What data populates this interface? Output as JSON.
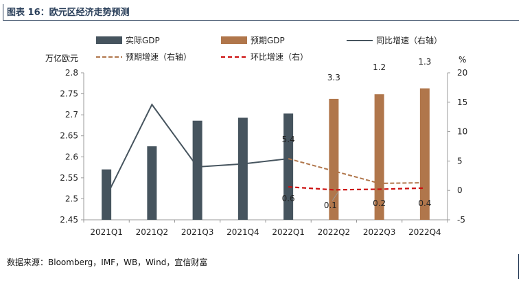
{
  "header": {
    "title": "图表 16：欧元区经济走势预测"
  },
  "footer": {
    "source": "数据来源：Bloomberg，IMF，WB，Wind，宜信财富"
  },
  "chart_data": {
    "type": "bar",
    "categories": [
      "2021Q1",
      "2021Q2",
      "2021Q3",
      "2021Q4",
      "2022Q1",
      "2022Q2",
      "2022Q3",
      "2022Q4"
    ],
    "left_axis": {
      "unit_label": "万亿欧元",
      "min": 2.45,
      "max": 2.8,
      "ticks": [
        "2.45",
        "2.5",
        "2.55",
        "2.6",
        "2.65",
        "2.7",
        "2.75",
        "2.8"
      ]
    },
    "right_axis": {
      "unit_label": "%",
      "min": -5,
      "max": 20,
      "ticks": [
        "-5",
        "0",
        "5",
        "10",
        "15",
        "20"
      ]
    },
    "legend": [
      "实际GDP",
      "预期GDP",
      "同比增速（右轴）",
      "预期增速（右轴）",
      "环比增速（右）"
    ],
    "series": [
      {
        "name": "实际GDP",
        "kind": "bar",
        "axis": "left",
        "color": "#46545e",
        "values": [
          2.57,
          2.625,
          2.686,
          2.693,
          2.703,
          null,
          null,
          null
        ]
      },
      {
        "name": "预期GDP",
        "kind": "bar",
        "axis": "left",
        "color": "#b0764b",
        "values": [
          null,
          null,
          null,
          null,
          null,
          2.738,
          2.749,
          2.763
        ]
      },
      {
        "name": "同比增速（右轴）",
        "kind": "line",
        "axis": "right",
        "color": "#46545e",
        "dash": "solid",
        "values": [
          -1,
          14.6,
          4,
          4.5,
          5.4,
          null,
          null,
          null
        ]
      },
      {
        "name": "预期增速（右轴）",
        "kind": "line",
        "axis": "right",
        "color": "#b0764b",
        "dash": "dashed",
        "values": [
          null,
          null,
          null,
          null,
          5.4,
          3.3,
          1.2,
          1.3
        ]
      },
      {
        "name": "环比增速（右）",
        "kind": "line",
        "axis": "right",
        "color": "#cc1010",
        "dash": "dashed",
        "values": [
          null,
          null,
          null,
          null,
          0.6,
          0.1,
          0.2,
          0.4
        ]
      }
    ],
    "data_labels": [
      {
        "category": "2022Q1",
        "text": "5.4"
      },
      {
        "category": "2022Q2",
        "text": "3.3"
      },
      {
        "category": "2022Q3",
        "text": "1.2"
      },
      {
        "category": "2022Q4",
        "text": "1.3"
      },
      {
        "category": "2022Q1",
        "text": "0.6"
      },
      {
        "category": "2022Q2",
        "text": "0.1"
      },
      {
        "category": "2022Q3",
        "text": "0.2"
      },
      {
        "category": "2022Q4",
        "text": "0.4"
      }
    ],
    "grid": false
  }
}
